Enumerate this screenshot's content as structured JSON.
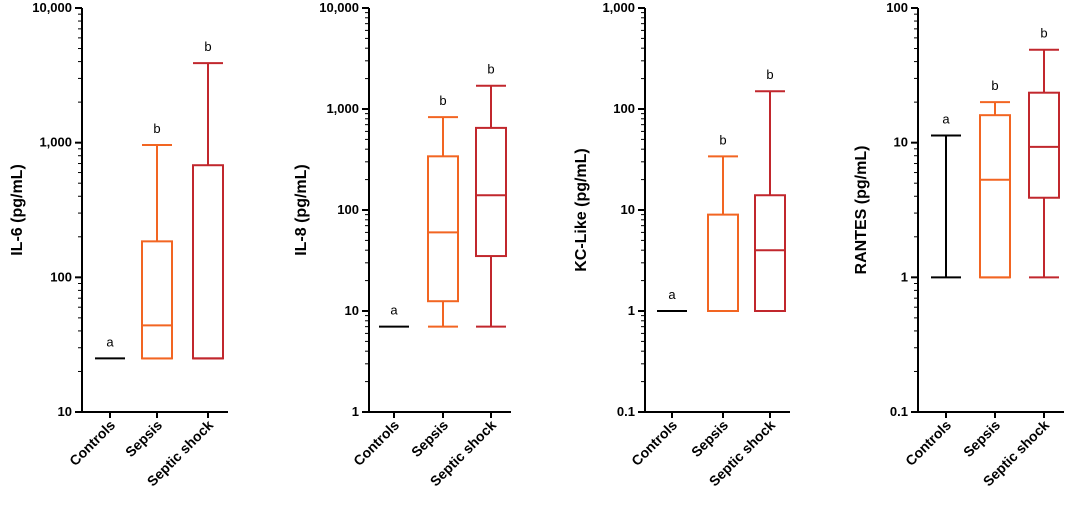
{
  "chart_data": [
    {
      "type": "boxplot",
      "ylabel": "IL-6 (pg/mL)",
      "yscale": "log",
      "ylim": [
        10,
        10000
      ],
      "yticks": [
        10,
        100,
        1000,
        10000
      ],
      "ytick_labels": [
        "10",
        "100",
        "1,000",
        "10,000"
      ],
      "categories": [
        "Controls",
        "Sepsis",
        "Septic shock"
      ],
      "colors": [
        "#000000",
        "#f26522",
        "#c1272d"
      ],
      "boxes": [
        {
          "min": 25,
          "q1": 25,
          "median": 25,
          "q3": 25,
          "max": 25,
          "label": "a"
        },
        {
          "min": 25,
          "q1": 25,
          "median": 44,
          "q3": 185,
          "max": 960,
          "label": "b"
        },
        {
          "min": 25,
          "q1": 25,
          "median": 25,
          "q3": 680,
          "max": 3900,
          "label": "b"
        }
      ]
    },
    {
      "type": "boxplot",
      "ylabel": "IL-8 (pg/mL)",
      "yscale": "log",
      "ylim": [
        1,
        10000
      ],
      "yticks": [
        1,
        10,
        100,
        1000,
        10000
      ],
      "ytick_labels": [
        "1",
        "10",
        "100",
        "1,000",
        "10,000"
      ],
      "categories": [
        "Controls",
        "Sepsis",
        "Septic shock"
      ],
      "colors": [
        "#000000",
        "#f26522",
        "#c1272d"
      ],
      "boxes": [
        {
          "min": 7,
          "q1": 7,
          "median": 7,
          "q3": 7,
          "max": 7,
          "label": "a"
        },
        {
          "min": 7,
          "q1": 12.5,
          "median": 60,
          "q3": 340,
          "max": 830,
          "label": "b"
        },
        {
          "min": 7,
          "q1": 35,
          "median": 140,
          "q3": 650,
          "max": 1700,
          "label": "b"
        }
      ]
    },
    {
      "type": "boxplot",
      "ylabel": "KC-Like (pg/mL)",
      "yscale": "log",
      "ylim": [
        0.1,
        1000
      ],
      "yticks": [
        0.1,
        1,
        10,
        100,
        1000
      ],
      "ytick_labels": [
        "0.1",
        "1",
        "10",
        "100",
        "1,000"
      ],
      "categories": [
        "Controls",
        "Sepsis",
        "Septic shock"
      ],
      "colors": [
        "#000000",
        "#f26522",
        "#c1272d"
      ],
      "boxes": [
        {
          "min": 1,
          "q1": 1,
          "median": 1,
          "q3": 1,
          "max": 1,
          "label": "a"
        },
        {
          "min": 1,
          "q1": 1,
          "median": 1,
          "q3": 9,
          "max": 34,
          "label": "b"
        },
        {
          "min": 1,
          "q1": 1,
          "median": 4,
          "q3": 14,
          "max": 150,
          "label": "b"
        }
      ]
    },
    {
      "type": "boxplot",
      "ylabel": "RANTES (pg/mL)",
      "yscale": "log",
      "ylim": [
        0.1,
        100
      ],
      "yticks": [
        0.1,
        1,
        10,
        100
      ],
      "ytick_labels": [
        "0.1",
        "1",
        "10",
        "100"
      ],
      "categories": [
        "Controls",
        "Sepsis",
        "Septic shock"
      ],
      "colors": [
        "#000000",
        "#f26522",
        "#c1272d"
      ],
      "boxes": [
        {
          "min": 1,
          "q1": 1,
          "median": 1,
          "q3": 1,
          "max": 11.3,
          "label": "a"
        },
        {
          "min": 1,
          "q1": 1,
          "median": 5.3,
          "q3": 16,
          "max": 20,
          "label": "b"
        },
        {
          "min": 1,
          "q1": 3.9,
          "median": 9.3,
          "q3": 23.5,
          "max": 49,
          "label": "b"
        }
      ]
    }
  ]
}
